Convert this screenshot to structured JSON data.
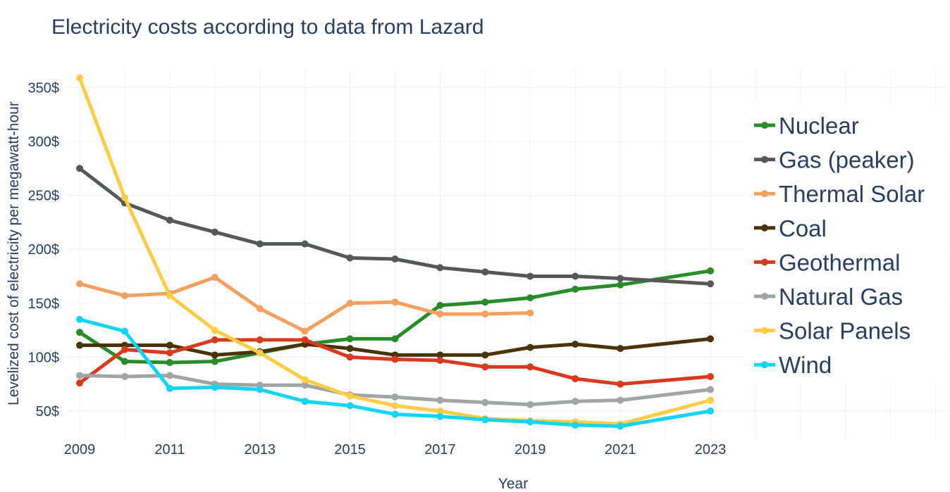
{
  "chart_data": {
    "type": "line",
    "title": "Electricity costs according to data from Lazard",
    "xlabel": "Year",
    "ylabel": "Levelized cost of electricity per megawatt-hour",
    "x_ticks": [
      2009,
      2011,
      2013,
      2015,
      2017,
      2019,
      2021,
      2023
    ],
    "y_ticks": [
      50,
      100,
      150,
      200,
      250,
      300,
      350
    ],
    "y_tick_suffix": "$",
    "xlim": [
      2009,
      2023
    ],
    "ylim": [
      50,
      350
    ],
    "legend_position": "right",
    "series": [
      {
        "name": "Nuclear",
        "color": "#2a8b2a",
        "x": [
          2009,
          2010,
          2011,
          2012,
          2013,
          2014,
          2015,
          2016,
          2017,
          2018,
          2019,
          2020,
          2021,
          2023
        ],
        "values": [
          123,
          96,
          95,
          96,
          104,
          112,
          117,
          117,
          148,
          151,
          155,
          163,
          167,
          180
        ]
      },
      {
        "name": "Gas (peaker)",
        "color": "#555859",
        "x": [
          2009,
          2010,
          2011,
          2012,
          2013,
          2014,
          2015,
          2016,
          2017,
          2018,
          2019,
          2020,
          2021,
          2023
        ],
        "values": [
          275,
          243,
          227,
          216,
          205,
          205,
          192,
          191,
          183,
          179,
          175,
          175,
          173,
          168
        ]
      },
      {
        "name": "Thermal Solar",
        "color": "#f4a060",
        "x": [
          2009,
          2010,
          2011,
          2012,
          2013,
          2014,
          2015,
          2016,
          2017,
          2018,
          2019
        ],
        "values": [
          168,
          157,
          159,
          174,
          145,
          124,
          150,
          151,
          140,
          140,
          141
        ]
      },
      {
        "name": "Coal",
        "color": "#4a3209",
        "x": [
          2009,
          2010,
          2011,
          2012,
          2013,
          2014,
          2015,
          2016,
          2017,
          2018,
          2019,
          2020,
          2021,
          2023
        ],
        "values": [
          111,
          111,
          111,
          102,
          105,
          112,
          108,
          102,
          102,
          102,
          109,
          112,
          108,
          117
        ]
      },
      {
        "name": "Geothermal",
        "color": "#d63b1f",
        "x": [
          2009,
          2010,
          2011,
          2012,
          2013,
          2014,
          2015,
          2016,
          2017,
          2018,
          2019,
          2020,
          2021,
          2023
        ],
        "values": [
          76,
          107,
          104,
          116,
          116,
          116,
          100,
          98,
          97,
          91,
          91,
          80,
          75,
          82
        ]
      },
      {
        "name": "Natural Gas",
        "color": "#a0a4a5",
        "x": [
          2009,
          2010,
          2011,
          2012,
          2013,
          2014,
          2015,
          2016,
          2017,
          2018,
          2019,
          2020,
          2021,
          2023
        ],
        "values": [
          83,
          82,
          83,
          75,
          74,
          74,
          65,
          63,
          60,
          58,
          56,
          59,
          60,
          70
        ]
      },
      {
        "name": "Solar Panels",
        "color": "#fccd45",
        "x": [
          2009,
          2010,
          2011,
          2012,
          2013,
          2014,
          2015,
          2016,
          2017,
          2018,
          2019,
          2020,
          2021,
          2023
        ],
        "values": [
          359,
          248,
          157,
          125,
          104,
          79,
          64,
          55,
          50,
          43,
          41,
          40,
          38,
          60
        ]
      },
      {
        "name": "Wind",
        "color": "#15d4f2",
        "x": [
          2009,
          2010,
          2011,
          2012,
          2013,
          2014,
          2015,
          2016,
          2017,
          2018,
          2019,
          2020,
          2021,
          2023
        ],
        "values": [
          135,
          124,
          71,
          72,
          70,
          59,
          55,
          47,
          45,
          42,
          40,
          37,
          36,
          50
        ]
      }
    ]
  }
}
